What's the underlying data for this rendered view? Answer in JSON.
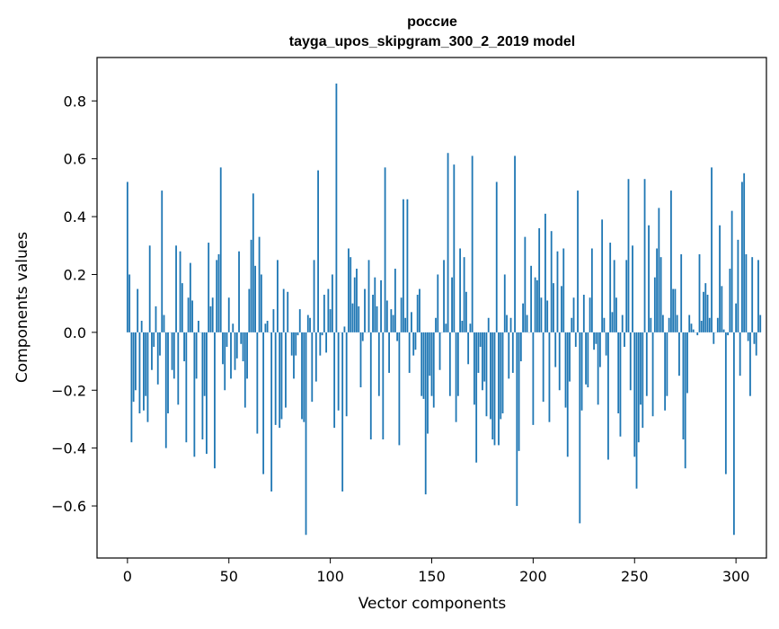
{
  "chart_data": {
    "type": "bar",
    "title_line1": "россие",
    "title_line2": "tayga_upos_skipgram_300_2_2019 model",
    "xlabel": "Vector components",
    "ylabel": "Components values",
    "xlim": [
      -15,
      315
    ],
    "ylim": [
      -0.78,
      0.95
    ],
    "xticks": [
      0,
      50,
      100,
      150,
      200,
      250,
      300
    ],
    "xtick_labels": [
      "0",
      "50",
      "100",
      "150",
      "200",
      "250",
      "300"
    ],
    "yticks": [
      -0.6,
      -0.4,
      -0.2,
      0.0,
      0.2,
      0.4,
      0.6,
      0.8
    ],
    "ytick_labels": [
      "−0.6",
      "−0.4",
      "−0.2",
      "0.0",
      "0.2",
      "0.4",
      "0.6",
      "0.8"
    ],
    "bar_color": "#1f77b4",
    "values": [
      0.52,
      0.2,
      -0.38,
      -0.24,
      -0.2,
      0.15,
      -0.28,
      0.04,
      -0.27,
      -0.22,
      -0.31,
      0.3,
      -0.13,
      -0.05,
      0.09,
      -0.18,
      -0.08,
      0.49,
      0.06,
      -0.4,
      -0.28,
      0.0,
      -0.13,
      -0.16,
      0.3,
      -0.25,
      0.28,
      0.17,
      -0.1,
      -0.38,
      0.12,
      0.24,
      0.11,
      -0.43,
      -0.16,
      0.04,
      0.0,
      -0.37,
      -0.22,
      -0.42,
      0.31,
      0.09,
      0.12,
      -0.47,
      0.25,
      0.27,
      0.57,
      -0.11,
      -0.2,
      -0.05,
      0.12,
      -0.16,
      0.03,
      -0.13,
      -0.09,
      0.28,
      -0.04,
      -0.1,
      -0.26,
      -0.16,
      0.15,
      0.32,
      0.48,
      0.23,
      -0.35,
      0.33,
      0.2,
      -0.49,
      0.03,
      0.04,
      0.0,
      -0.55,
      0.08,
      -0.32,
      0.25,
      -0.33,
      -0.3,
      0.15,
      -0.26,
      0.14,
      0.0,
      -0.08,
      -0.16,
      -0.08,
      -0.01,
      0.08,
      -0.3,
      -0.31,
      -0.7,
      0.06,
      0.05,
      -0.24,
      0.25,
      -0.17,
      0.56,
      -0.08,
      -0.01,
      0.13,
      -0.07,
      0.15,
      0.08,
      0.2,
      -0.33,
      0.86,
      -0.27,
      0.0,
      -0.55,
      0.02,
      -0.29,
      0.29,
      0.26,
      0.1,
      0.19,
      0.22,
      0.09,
      -0.19,
      -0.03,
      0.15,
      0.0,
      0.25,
      -0.37,
      0.13,
      0.19,
      0.09,
      -0.22,
      0.18,
      -0.37,
      0.57,
      0.11,
      -0.14,
      0.08,
      0.06,
      0.22,
      -0.03,
      -0.39,
      0.12,
      0.46,
      0.05,
      0.46,
      -0.14,
      0.07,
      -0.08,
      -0.06,
      0.13,
      0.15,
      -0.22,
      -0.23,
      -0.56,
      -0.35,
      -0.15,
      -0.22,
      -0.26,
      0.05,
      0.2,
      -0.13,
      0.0,
      0.25,
      0.03,
      0.62,
      -0.22,
      0.19,
      0.58,
      -0.31,
      -0.22,
      0.29,
      0.04,
      0.26,
      0.14,
      -0.11,
      0.03,
      0.61,
      -0.25,
      -0.45,
      -0.14,
      -0.05,
      -0.2,
      -0.17,
      -0.29,
      0.05,
      -0.3,
      -0.37,
      -0.39,
      0.52,
      -0.39,
      -0.3,
      -0.28,
      0.2,
      0.06,
      -0.16,
      0.05,
      -0.14,
      0.61,
      -0.6,
      -0.41,
      -0.1,
      0.1,
      0.33,
      0.06,
      0.0,
      0.23,
      -0.32,
      0.19,
      0.18,
      0.36,
      0.12,
      -0.24,
      0.41,
      0.11,
      -0.31,
      0.35,
      0.17,
      -0.12,
      0.28,
      -0.2,
      0.16,
      0.29,
      -0.26,
      -0.43,
      -0.17,
      0.05,
      0.12,
      -0.05,
      0.49,
      -0.66,
      -0.27,
      0.13,
      -0.18,
      -0.19,
      0.12,
      0.29,
      -0.06,
      -0.04,
      -0.25,
      -0.12,
      0.39,
      0.05,
      -0.08,
      -0.44,
      0.31,
      0.07,
      0.25,
      0.12,
      -0.28,
      -0.36,
      0.06,
      -0.05,
      0.25,
      0.53,
      -0.2,
      0.3,
      -0.43,
      -0.54,
      -0.38,
      -0.25,
      -0.33,
      0.53,
      -0.22,
      0.37,
      0.05,
      -0.29,
      0.19,
      0.29,
      0.43,
      0.26,
      0.06,
      -0.27,
      -0.22,
      0.05,
      0.49,
      0.15,
      0.15,
      0.06,
      -0.15,
      0.27,
      -0.37,
      -0.47,
      -0.21,
      0.06,
      0.03,
      0.01,
      0.0,
      -0.01,
      0.27,
      0.04,
      0.14,
      0.17,
      0.13,
      0.05,
      0.57,
      -0.04,
      0.0,
      0.05,
      0.37,
      0.16,
      0.01,
      -0.49,
      -0.01,
      0.22,
      0.42,
      -0.7,
      0.1,
      0.32,
      -0.15,
      0.52,
      0.55,
      0.27,
      -0.03,
      -0.22,
      0.26,
      -0.04,
      -0.08,
      0.25,
      0.06
    ]
  }
}
